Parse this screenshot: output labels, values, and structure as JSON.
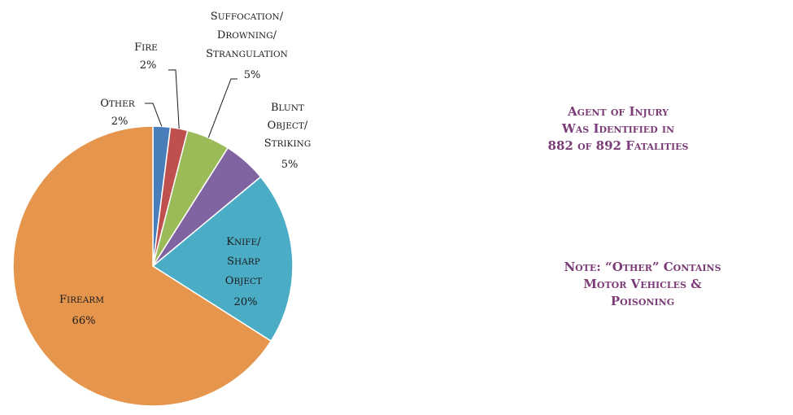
{
  "chart_data": {
    "type": "pie",
    "categories": [
      "Other",
      "Fire",
      "Suffocation/ Drowning/ Strangulation",
      "Blunt Object/ Striking",
      "Knife/ Sharp Object",
      "Firearm"
    ],
    "values": [
      2,
      2,
      5,
      5,
      20,
      66
    ],
    "labels": [
      "2%",
      "2%",
      "5%",
      "5%",
      "20%",
      "66%"
    ],
    "colors": [
      "#4a7ebb",
      "#c0504d",
      "#9bbb59",
      "#8064a2",
      "#4bacc6",
      "#e5954c"
    ],
    "title": "",
    "legend": "none"
  },
  "annotations": {
    "agent_note": [
      "Agent of Injury",
      "Was Identified in",
      "882 of 892 Fatalities"
    ],
    "other_note": [
      "Note:  “Other” Contains",
      "Motor Vehicles &",
      "Poisoning"
    ]
  }
}
